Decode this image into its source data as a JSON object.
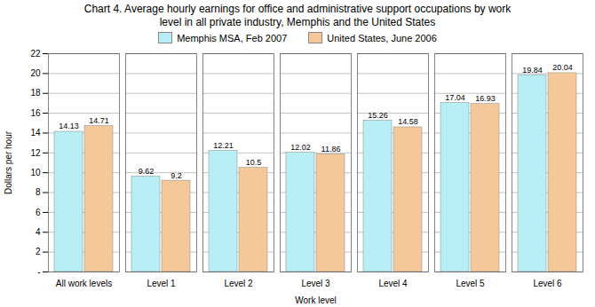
{
  "chart_data": {
    "type": "bar",
    "title": "Chart 4. Average hourly earnings for office and administrative support occupations by work\nlevel in all private industry, Memphis and the United States",
    "categories": [
      "All work levels",
      "Level 1",
      "Level 2",
      "Level 3",
      "Level 4",
      "Level 5",
      "Level 6"
    ],
    "series": [
      {
        "name": "Memphis MSA, Feb 2007",
        "color": "#b8eef5",
        "values": [
          14.13,
          9.62,
          12.21,
          12.02,
          15.26,
          17.04,
          19.84
        ]
      },
      {
        "name": "United States, June 2006",
        "color": "#f5c89a",
        "values": [
          14.71,
          9.2,
          10.5,
          11.86,
          14.58,
          16.93,
          20.04
        ]
      }
    ],
    "xlabel": "Work level",
    "ylabel": "Dollars per hour",
    "ylim": [
      0,
      22
    ],
    "yticks": [
      {
        "value": 0,
        "label": "-"
      },
      2,
      4,
      6,
      8,
      10,
      12,
      14,
      16,
      18,
      20,
      22
    ],
    "grid": true,
    "legend": "upper center",
    "data_labels": true
  }
}
